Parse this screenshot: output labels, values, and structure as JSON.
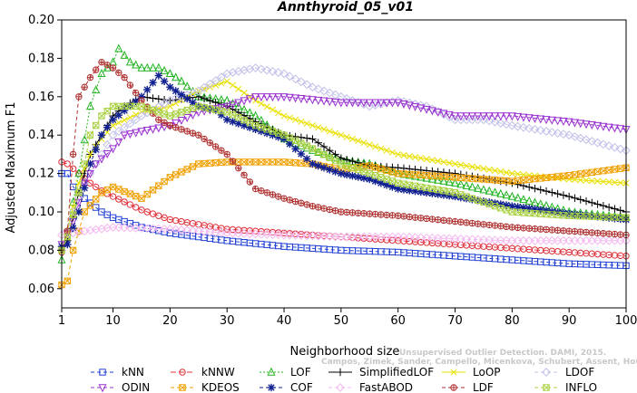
{
  "chart_data": {
    "type": "line",
    "title": "Annthyroid_05_v01",
    "xlabel": "Neighborhood size",
    "ylabel": "Adjusted Maximum F1",
    "xlim": [
      1,
      100
    ],
    "ylim": [
      0.05,
      0.2
    ],
    "x_ticks": [
      1,
      10,
      20,
      30,
      40,
      50,
      60,
      70,
      80,
      90,
      100
    ],
    "y_ticks": [
      0.06,
      0.08,
      0.1,
      0.12,
      0.14,
      0.16,
      0.18,
      0.2
    ],
    "y_tick_labels": [
      "0.06",
      "0.08",
      "0.10",
      "0.12",
      "0.14",
      "0.16",
      "0.18",
      "0.20"
    ],
    "grid": false,
    "legend_position": "bottom",
    "credit_line1": "Unsupervised Outlier Detection. DAMI, 2015.",
    "credit_line2": "Campos, Zimek, Sander, Campello, Micenkova, Schubert, Assent, Houle",
    "series": [
      {
        "name": "kNN",
        "color": "#1f3fd4",
        "marker": "square",
        "dash": "4,3",
        "keypoints": [
          [
            1,
            0.12
          ],
          [
            2,
            0.12
          ],
          [
            3,
            0.113
          ],
          [
            5,
            0.107
          ],
          [
            8,
            0.1
          ],
          [
            10,
            0.097
          ],
          [
            15,
            0.092
          ],
          [
            20,
            0.089
          ],
          [
            30,
            0.085
          ],
          [
            40,
            0.082
          ],
          [
            50,
            0.08
          ],
          [
            60,
            0.079
          ],
          [
            70,
            0.077
          ],
          [
            80,
            0.075
          ],
          [
            90,
            0.073
          ],
          [
            100,
            0.072
          ]
        ]
      },
      {
        "name": "kNNW",
        "color": "#e0303a",
        "marker": "circle",
        "dash": "6,3",
        "keypoints": [
          [
            1,
            0.126
          ],
          [
            2,
            0.125
          ],
          [
            4,
            0.12
          ],
          [
            6,
            0.115
          ],
          [
            8,
            0.111
          ],
          [
            10,
            0.108
          ],
          [
            15,
            0.101
          ],
          [
            20,
            0.096
          ],
          [
            30,
            0.091
          ],
          [
            40,
            0.089
          ],
          [
            50,
            0.087
          ],
          [
            60,
            0.085
          ],
          [
            70,
            0.083
          ],
          [
            80,
            0.081
          ],
          [
            90,
            0.079
          ],
          [
            100,
            0.077
          ]
        ]
      },
      {
        "name": "LOF",
        "color": "#22b422",
        "marker": "triangle",
        "dash": "2,2",
        "keypoints": [
          [
            1,
            0.075
          ],
          [
            2,
            0.09
          ],
          [
            4,
            0.12
          ],
          [
            6,
            0.155
          ],
          [
            8,
            0.172
          ],
          [
            10,
            0.178
          ],
          [
            11,
            0.185
          ],
          [
            13,
            0.178
          ],
          [
            15,
            0.175
          ],
          [
            18,
            0.175
          ],
          [
            20,
            0.172
          ],
          [
            22,
            0.168
          ],
          [
            25,
            0.16
          ],
          [
            30,
            0.158
          ],
          [
            35,
            0.15
          ],
          [
            40,
            0.138
          ],
          [
            45,
            0.132
          ],
          [
            50,
            0.127
          ],
          [
            55,
            0.125
          ],
          [
            60,
            0.12
          ],
          [
            70,
            0.115
          ],
          [
            80,
            0.108
          ],
          [
            90,
            0.1
          ],
          [
            100,
            0.097
          ]
        ]
      },
      {
        "name": "SimplifiedLOF",
        "color": "#000000",
        "marker": "plus",
        "dash": "",
        "keypoints": [
          [
            1,
            0.08
          ],
          [
            2,
            0.085
          ],
          [
            4,
            0.11
          ],
          [
            6,
            0.13
          ],
          [
            8,
            0.14
          ],
          [
            10,
            0.15
          ],
          [
            12,
            0.155
          ],
          [
            15,
            0.16
          ],
          [
            20,
            0.158
          ],
          [
            25,
            0.16
          ],
          [
            30,
            0.155
          ],
          [
            35,
            0.147
          ],
          [
            40,
            0.14
          ],
          [
            45,
            0.138
          ],
          [
            50,
            0.128
          ],
          [
            55,
            0.124
          ],
          [
            60,
            0.123
          ],
          [
            70,
            0.12
          ],
          [
            80,
            0.115
          ],
          [
            90,
            0.108
          ],
          [
            100,
            0.1
          ]
        ]
      },
      {
        "name": "LoOP",
        "color": "#e8e000",
        "marker": "x",
        "dash": "",
        "keypoints": [
          [
            1,
            0.08
          ],
          [
            2,
            0.09
          ],
          [
            4,
            0.115
          ],
          [
            6,
            0.13
          ],
          [
            8,
            0.138
          ],
          [
            10,
            0.145
          ],
          [
            15,
            0.152
          ],
          [
            20,
            0.155
          ],
          [
            25,
            0.163
          ],
          [
            30,
            0.168
          ],
          [
            35,
            0.158
          ],
          [
            40,
            0.15
          ],
          [
            50,
            0.14
          ],
          [
            60,
            0.13
          ],
          [
            70,
            0.125
          ],
          [
            80,
            0.12
          ],
          [
            90,
            0.117
          ],
          [
            100,
            0.115
          ]
        ]
      },
      {
        "name": "LDOF",
        "color": "#c0c0ea",
        "marker": "diamond",
        "dash": "4,3",
        "keypoints": [
          [
            1,
            0.08
          ],
          [
            3,
            0.1
          ],
          [
            5,
            0.115
          ],
          [
            8,
            0.13
          ],
          [
            10,
            0.14
          ],
          [
            15,
            0.15
          ],
          [
            20,
            0.158
          ],
          [
            25,
            0.163
          ],
          [
            30,
            0.172
          ],
          [
            35,
            0.175
          ],
          [
            40,
            0.172
          ],
          [
            45,
            0.165
          ],
          [
            50,
            0.16
          ],
          [
            55,
            0.155
          ],
          [
            60,
            0.158
          ],
          [
            65,
            0.155
          ],
          [
            70,
            0.148
          ],
          [
            75,
            0.148
          ],
          [
            80,
            0.145
          ],
          [
            90,
            0.14
          ],
          [
            100,
            0.132
          ]
        ]
      },
      {
        "name": "ODIN",
        "color": "#9a30d0",
        "marker": "triangle-down",
        "dash": "4,3",
        "keypoints": [
          [
            1,
            0.083
          ],
          [
            3,
            0.095
          ],
          [
            5,
            0.115
          ],
          [
            7,
            0.125
          ],
          [
            10,
            0.133
          ],
          [
            12,
            0.14
          ],
          [
            15,
            0.142
          ],
          [
            20,
            0.145
          ],
          [
            25,
            0.152
          ],
          [
            30,
            0.155
          ],
          [
            35,
            0.16
          ],
          [
            40,
            0.16
          ],
          [
            50,
            0.157
          ],
          [
            60,
            0.157
          ],
          [
            70,
            0.15
          ],
          [
            80,
            0.15
          ],
          [
            90,
            0.147
          ],
          [
            100,
            0.143
          ]
        ]
      },
      {
        "name": "KDEOS",
        "color": "#f0a000",
        "marker": "square-x",
        "dash": "4,3",
        "keypoints": [
          [
            1,
            0.062
          ],
          [
            2,
            0.064
          ],
          [
            3,
            0.08
          ],
          [
            5,
            0.1
          ],
          [
            8,
            0.11
          ],
          [
            10,
            0.113
          ],
          [
            15,
            0.107
          ],
          [
            20,
            0.118
          ],
          [
            25,
            0.125
          ],
          [
            30,
            0.126
          ],
          [
            35,
            0.126
          ],
          [
            40,
            0.126
          ],
          [
            45,
            0.125
          ],
          [
            50,
            0.122
          ],
          [
            55,
            0.124
          ],
          [
            60,
            0.12
          ],
          [
            70,
            0.118
          ],
          [
            80,
            0.116
          ],
          [
            90,
            0.119
          ],
          [
            100,
            0.123
          ]
        ]
      },
      {
        "name": "COF",
        "color": "#102090",
        "marker": "asterisk",
        "dash": "4,3",
        "keypoints": [
          [
            1,
            0.082
          ],
          [
            2,
            0.083
          ],
          [
            4,
            0.1
          ],
          [
            6,
            0.125
          ],
          [
            8,
            0.14
          ],
          [
            10,
            0.148
          ],
          [
            15,
            0.16
          ],
          [
            18,
            0.171
          ],
          [
            20,
            0.165
          ],
          [
            25,
            0.155
          ],
          [
            28,
            0.153
          ],
          [
            30,
            0.148
          ],
          [
            35,
            0.143
          ],
          [
            40,
            0.138
          ],
          [
            45,
            0.125
          ],
          [
            50,
            0.12
          ],
          [
            55,
            0.117
          ],
          [
            60,
            0.112
          ],
          [
            70,
            0.108
          ],
          [
            80,
            0.103
          ],
          [
            90,
            0.099
          ],
          [
            100,
            0.096
          ]
        ]
      },
      {
        "name": "FastABOD",
        "color": "#f4b8f0",
        "marker": "diamond",
        "dash": "4,3",
        "keypoints": [
          [
            1,
            0.088
          ],
          [
            5,
            0.09
          ],
          [
            10,
            0.092
          ],
          [
            20,
            0.091
          ],
          [
            30,
            0.089
          ],
          [
            40,
            0.088
          ],
          [
            50,
            0.087
          ],
          [
            60,
            0.087
          ],
          [
            70,
            0.086
          ],
          [
            80,
            0.085
          ],
          [
            90,
            0.085
          ],
          [
            100,
            0.085
          ]
        ]
      },
      {
        "name": "LDF",
        "color": "#b03030",
        "marker": "circle-plus",
        "dash": "4,3",
        "keypoints": [
          [
            1,
            0.079
          ],
          [
            2,
            0.09
          ],
          [
            3,
            0.13
          ],
          [
            4,
            0.16
          ],
          [
            6,
            0.17
          ],
          [
            8,
            0.178
          ],
          [
            10,
            0.175
          ],
          [
            12,
            0.17
          ],
          [
            15,
            0.158
          ],
          [
            18,
            0.148
          ],
          [
            20,
            0.145
          ],
          [
            25,
            0.14
          ],
          [
            30,
            0.13
          ],
          [
            35,
            0.112
          ],
          [
            40,
            0.107
          ],
          [
            45,
            0.103
          ],
          [
            50,
            0.1
          ],
          [
            55,
            0.099
          ],
          [
            60,
            0.098
          ],
          [
            70,
            0.095
          ],
          [
            80,
            0.092
          ],
          [
            90,
            0.09
          ],
          [
            100,
            0.088
          ]
        ]
      },
      {
        "name": "INFLO",
        "color": "#a8d040",
        "marker": "square-x",
        "dash": "4,3",
        "keypoints": [
          [
            1,
            0.08
          ],
          [
            2,
            0.087
          ],
          [
            4,
            0.11
          ],
          [
            6,
            0.14
          ],
          [
            8,
            0.15
          ],
          [
            10,
            0.155
          ],
          [
            15,
            0.155
          ],
          [
            20,
            0.15
          ],
          [
            25,
            0.155
          ],
          [
            30,
            0.152
          ],
          [
            35,
            0.145
          ],
          [
            40,
            0.14
          ],
          [
            45,
            0.133
          ],
          [
            50,
            0.125
          ],
          [
            55,
            0.12
          ],
          [
            60,
            0.115
          ],
          [
            70,
            0.11
          ],
          [
            80,
            0.1
          ],
          [
            90,
            0.098
          ],
          [
            100,
            0.097
          ]
        ]
      }
    ]
  }
}
